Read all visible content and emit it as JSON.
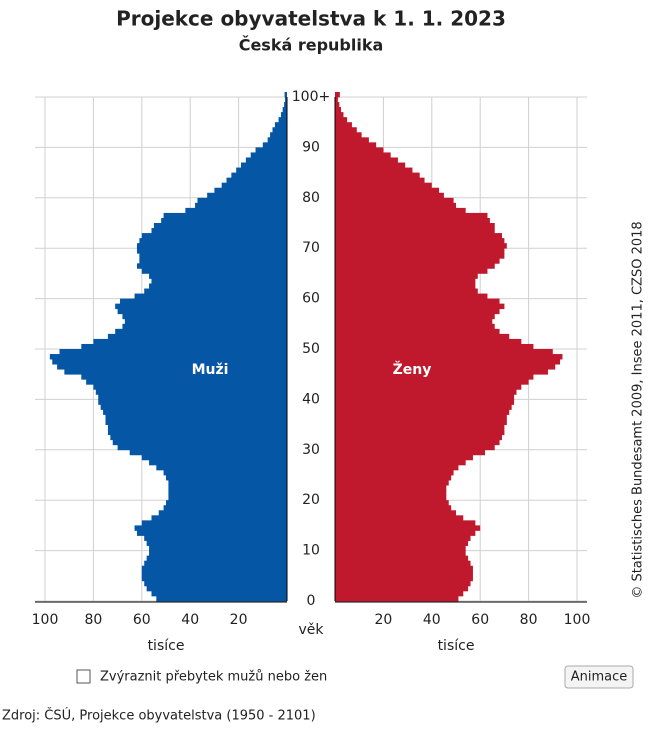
{
  "chart_data": {
    "type": "pyramid",
    "title": "Projekce obyvatelstva k 1. 1. 2023",
    "subtitle": "Česká republika",
    "y_axis_label": "věk",
    "x_axis_label": "tisíce",
    "credit": "© Statistisches Bundesamt 2009, Insee 2011, CZSO 2018",
    "categories": [
      "0",
      null,
      null,
      null,
      null,
      null,
      null,
      null,
      null,
      null,
      "10",
      null,
      null,
      null,
      null,
      null,
      null,
      null,
      null,
      null,
      "20",
      null,
      null,
      null,
      null,
      null,
      null,
      null,
      null,
      null,
      "30",
      null,
      null,
      null,
      null,
      null,
      null,
      null,
      null,
      null,
      "40",
      null,
      null,
      null,
      null,
      null,
      null,
      null,
      null,
      null,
      "50",
      null,
      null,
      null,
      null,
      null,
      null,
      null,
      null,
      null,
      "60",
      null,
      null,
      null,
      null,
      null,
      null,
      null,
      null,
      null,
      "70",
      null,
      null,
      null,
      null,
      null,
      null,
      null,
      null,
      null,
      "80",
      null,
      null,
      null,
      null,
      null,
      null,
      null,
      null,
      null,
      "90",
      null,
      null,
      null,
      null,
      null,
      null,
      null,
      null,
      null,
      "100+"
    ],
    "xlim": [
      0,
      100
    ],
    "xticks": [
      20,
      40,
      60,
      80,
      100
    ],
    "grid": true,
    "series": [
      {
        "name": "Muži",
        "color": "#0656a6",
        "side": "left",
        "values": [
          54,
          56,
          58,
          59,
          60,
          60,
          60,
          59,
          58,
          57,
          57,
          58,
          59,
          62,
          63,
          60,
          56,
          53,
          51,
          50,
          49,
          49,
          49,
          49,
          50,
          51,
          54,
          57,
          60,
          65,
          70,
          72,
          73,
          74,
          74,
          75,
          75,
          76,
          77,
          78,
          78,
          79,
          80,
          83,
          85,
          92,
          95,
          97,
          98,
          94,
          85,
          80,
          74,
          71,
          68,
          67,
          68,
          70,
          71,
          69,
          63,
          59,
          57,
          56,
          57,
          60,
          62,
          61,
          61,
          62,
          62,
          61,
          60,
          56,
          55,
          52,
          51,
          42,
          38,
          37,
          33,
          30,
          27,
          25,
          23,
          21,
          19,
          17,
          15,
          13,
          10,
          8,
          7,
          6,
          5,
          3.5,
          2.5,
          1.8,
          1.2,
          0.8,
          1
        ]
      },
      {
        "name": "Ženy",
        "color": "#c0182c",
        "side": "right",
        "values": [
          51,
          53,
          55,
          56,
          57,
          57,
          57,
          56,
          55,
          54,
          54,
          55,
          56,
          58,
          60,
          58,
          53,
          50,
          48,
          47,
          46,
          46,
          46,
          47,
          48,
          49,
          51,
          54,
          57,
          62,
          66,
          68,
          69,
          70,
          70,
          71,
          71,
          72,
          73,
          74,
          74,
          75,
          77,
          80,
          82,
          88,
          91,
          93,
          94,
          90,
          82,
          77,
          72,
          68,
          66,
          65,
          66,
          68,
          70,
          68,
          63,
          59,
          58,
          58,
          59,
          63,
          66,
          68,
          70,
          70,
          71,
          70,
          69,
          66,
          66,
          64,
          63,
          54,
          50,
          49,
          45,
          43,
          40,
          37,
          35,
          32,
          29,
          26,
          23,
          20,
          17,
          14,
          11,
          9,
          7,
          5,
          3.5,
          2.5,
          1.8,
          1.2,
          2
        ]
      }
    ]
  },
  "controls": {
    "checkbox_label": "Zvýraznit přebytek mužů nebo žen",
    "button_label": "Animace"
  },
  "source": "Zdroj: ČSÚ, Projekce obyvatelstva (1950 - 2101)"
}
